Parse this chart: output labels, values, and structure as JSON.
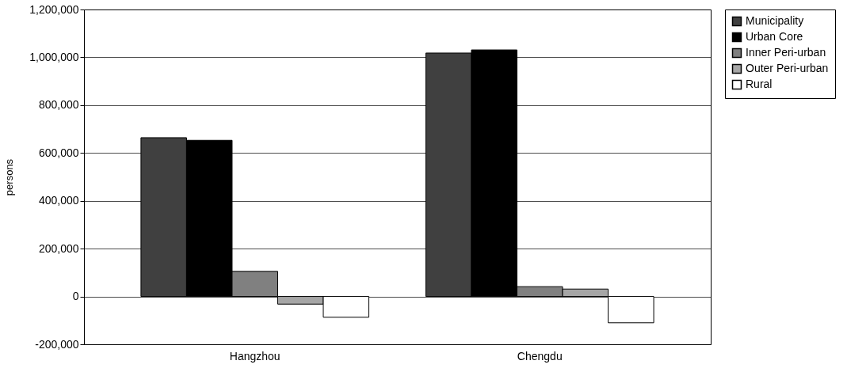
{
  "chart_data": {
    "type": "bar",
    "ylabel": "persons",
    "categories": [
      "Hangzhou",
      "Chengdu"
    ],
    "series": [
      {
        "name": "Municipality",
        "color": "#404040",
        "values": [
          664000,
          1018000
        ]
      },
      {
        "name": "Urban Core",
        "color": "#000000",
        "values": [
          653000,
          1031000
        ]
      },
      {
        "name": "Inner Peri-urban",
        "color": "#808080",
        "values": [
          105000,
          41000
        ]
      },
      {
        "name": "Outer Peri-urban",
        "color": "#a6a6a6",
        "values": [
          -32000,
          31000
        ]
      },
      {
        "name": "Rural",
        "color": "#ffffff",
        "values": [
          -87000,
          -110000
        ]
      }
    ],
    "ylim": [
      -200000,
      1200000
    ],
    "yticks": [
      {
        "value": -200000,
        "label": "-200,000"
      },
      0,
      {
        "value": 200000,
        "label": "200,000"
      },
      {
        "value": 400000,
        "label": "400,000"
      },
      {
        "value": 600000,
        "label": "600,000"
      },
      {
        "value": 800000,
        "label": "800,000"
      },
      {
        "value": 1000000,
        "label": "1,000,000"
      },
      {
        "value": 1200000,
        "label": "1,200,000"
      }
    ],
    "grid": "y",
    "legend": "right"
  }
}
